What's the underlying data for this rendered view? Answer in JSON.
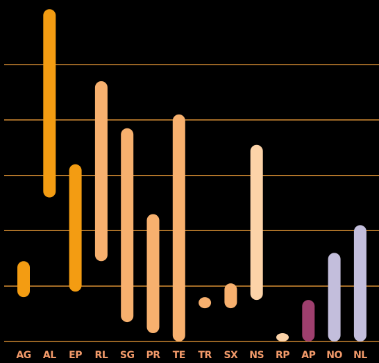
{
  "chart_data": {
    "type": "bar",
    "subtype": "floating-range",
    "title": "",
    "xlabel": "",
    "ylabel": "",
    "y_axis_labels_shown": false,
    "grid": "horizontal",
    "legend": "none",
    "ylim": [
      0,
      6.2
    ],
    "gridlines": [
      1,
      2,
      3,
      4,
      5
    ],
    "background": "#000000",
    "gridline_color": "#f2a03a",
    "label_color": "#f29a6a",
    "categories": [
      "AG",
      "AL",
      "EP",
      "RL",
      "SG",
      "PR",
      "TE",
      "TR",
      "SX",
      "NS",
      "RP",
      "AP",
      "NO",
      "NL"
    ],
    "ranges": [
      {
        "category": "AG",
        "low": 0.8,
        "high": 1.45,
        "color": "#f39c12"
      },
      {
        "category": "AL",
        "low": 2.6,
        "high": 6.0,
        "color": "#f39c12"
      },
      {
        "category": "EP",
        "low": 0.9,
        "high": 3.2,
        "color": "#f39c12"
      },
      {
        "category": "RL",
        "low": 1.45,
        "high": 4.7,
        "color": "#f7b06e"
      },
      {
        "category": "SG",
        "low": 0.35,
        "high": 3.85,
        "color": "#f7b06e"
      },
      {
        "category": "PR",
        "low": 0.15,
        "high": 2.3,
        "color": "#f7b06e"
      },
      {
        "category": "TE",
        "low": 0.0,
        "high": 4.1,
        "color": "#f7b06e"
      },
      {
        "category": "TR",
        "low": 0.6,
        "high": 0.8,
        "color": "#f7b06e"
      },
      {
        "category": "SX",
        "low": 0.6,
        "high": 1.05,
        "color": "#f7b06e"
      },
      {
        "category": "NS",
        "low": 0.75,
        "high": 3.55,
        "color": "#fcd3a8"
      },
      {
        "category": "RP",
        "low": 0.0,
        "high": 0.15,
        "color": "#fcd3a8"
      },
      {
        "category": "AP",
        "low": 0.0,
        "high": 0.75,
        "color": "#9e3f6e"
      },
      {
        "category": "NO",
        "low": 0.0,
        "high": 1.6,
        "color": "#c3bedc"
      },
      {
        "category": "NL",
        "low": 0.0,
        "high": 2.1,
        "color": "#c3bedc"
      }
    ]
  }
}
